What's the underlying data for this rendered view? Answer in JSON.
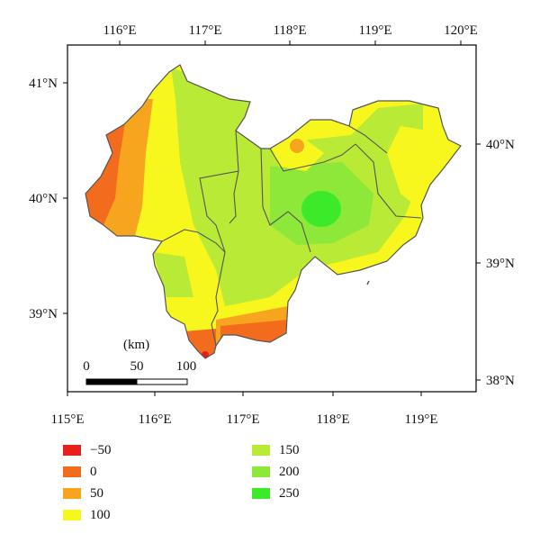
{
  "map": {
    "top_axis_labels": [
      "116°E",
      "117°E",
      "118°E",
      "119°E",
      "120°E"
    ],
    "bottom_axis_labels": [
      "115°E",
      "116°E",
      "117°E",
      "118°E",
      "119°E"
    ],
    "left_axis_labels": [
      "41°N",
      "40°N",
      "39°N"
    ],
    "right_axis_labels": [
      "40°N",
      "39°N",
      "38°N"
    ],
    "scale_bar": {
      "unit": "(km)",
      "ticks": [
        "0",
        "50",
        "100"
      ]
    }
  },
  "legend": {
    "items": [
      {
        "label": "−50",
        "color": "#e8201c"
      },
      {
        "label": "0",
        "color": "#f36b1c"
      },
      {
        "label": "50",
        "color": "#f7a51f"
      },
      {
        "label": "100",
        "color": "#f7f71e"
      },
      {
        "label": "150",
        "color": "#b9ea35"
      },
      {
        "label": "200",
        "color": "#8ee83a"
      },
      {
        "label": "250",
        "color": "#3cea2a"
      }
    ]
  },
  "colors": {
    "frame": "#000000",
    "boundary": "#555555",
    "background": "#ffffff"
  }
}
